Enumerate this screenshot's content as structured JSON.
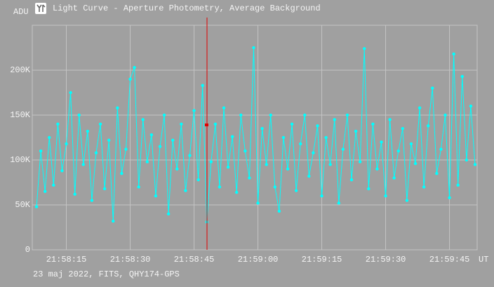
{
  "chart_data": {
    "type": "line",
    "title": "Light Curve - Aperture Photometry, Average Background",
    "y_label": "ADU",
    "x_label": "UT",
    "footer": "23 maj 2022, FITS, QHY174-GPS",
    "x": [
      79088,
      79089,
      79090,
      79091,
      79092,
      79093,
      79094,
      79095,
      79096,
      79097,
      79098,
      79099,
      79100,
      79101,
      79102,
      79103,
      79104,
      79105,
      79106,
      79107,
      79108,
      79109,
      79110,
      79111,
      79112,
      79113,
      79114,
      79115,
      79116,
      79117,
      79118,
      79119,
      79120,
      79121,
      79122,
      79123,
      79124,
      79125,
      79126,
      79127,
      79128,
      79129,
      79130,
      79131,
      79132,
      79133,
      79134,
      79135,
      79136,
      79137,
      79138,
      79139,
      79140,
      79141,
      79142,
      79143,
      79144,
      79145,
      79146,
      79147,
      79148,
      79149,
      79150,
      79151,
      79152,
      79153,
      79154,
      79155,
      79156,
      79157,
      79158,
      79159,
      79160,
      79161,
      79162,
      79163,
      79164,
      79165,
      79166,
      79167,
      79168,
      79169,
      79170,
      79171,
      79172,
      79173,
      79174,
      79175,
      79176,
      79177,
      79178,
      79179,
      79180,
      79181,
      79182,
      79183,
      79184,
      79185,
      79186,
      79187,
      79188,
      79189,
      79190,
      79191
    ],
    "series": [
      {
        "color": "#00ffff",
        "values": [
          48000,
          110000,
          65000,
          125000,
          72000,
          140000,
          88000,
          118000,
          175000,
          62000,
          150000,
          95000,
          132000,
          55000,
          108000,
          140000,
          68000,
          122000,
          32000,
          158000,
          85000,
          112000,
          190000,
          203000,
          70000,
          145000,
          98000,
          128000,
          60000,
          115000,
          150000,
          40000,
          122000,
          90000,
          140000,
          66000,
          105000,
          155000,
          78000,
          183000,
          31000,
          98000,
          140000,
          70000,
          158000,
          92000,
          126000,
          64000,
          150000,
          110000,
          80000,
          225000,
          52000,
          135000,
          95000,
          150000,
          70000,
          43000,
          125000,
          90000,
          140000,
          66000,
          118000,
          150000,
          82000,
          108000,
          138000,
          60000,
          125000,
          95000,
          145000,
          52000,
          112000,
          150000,
          78000,
          132000,
          98000,
          224000,
          68000,
          140000,
          90000,
          120000,
          60000,
          145000,
          80000,
          110000,
          135000,
          55000,
          118000,
          96000,
          158000,
          70000,
          138000,
          180000,
          85000,
          112000,
          150000,
          58000,
          218000,
          72000,
          193000,
          100000,
          160000,
          95000
        ]
      }
    ],
    "xlim": [
      79087,
      79191.5
    ],
    "xticks": [
      {
        "value": 79095,
        "label": "21:58:15"
      },
      {
        "value": 79110,
        "label": "21:58:30"
      },
      {
        "value": 79125,
        "label": "21:58:45"
      },
      {
        "value": 79140,
        "label": "21:59:00"
      },
      {
        "value": 79155,
        "label": "21:59:15"
      },
      {
        "value": 79170,
        "label": "21:59:30"
      },
      {
        "value": 79185,
        "label": "21:59:45"
      }
    ],
    "ylim": [
      0,
      250000
    ],
    "yticks": [
      0,
      {
        "value": 50000,
        "label": "50K"
      },
      {
        "value": 100000,
        "label": "100K"
      },
      {
        "value": 150000,
        "label": "150K"
      },
      {
        "value": 200000,
        "label": "200K"
      }
    ],
    "grid": true
  }
}
